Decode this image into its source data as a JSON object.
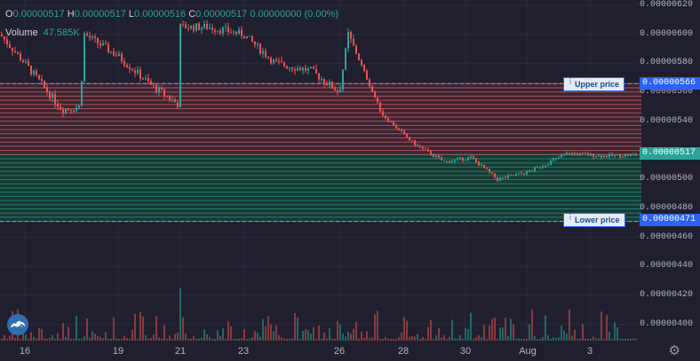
{
  "legend": {
    "o_label": "O",
    "o_value": "0.00000517",
    "h_label": "H",
    "h_value": "0.00000517",
    "l_label": "L",
    "l_value": "0.00000516",
    "c_label": "C",
    "c_value": "0.00000517",
    "change": "0.00000000 (0.00%)",
    "volume_label": "Volume",
    "volume_value": "47.585K"
  },
  "price_axis": {
    "labels": [
      "0.00000620",
      "0.00000600",
      "0.00000580",
      "0.00000560",
      "0.00000540",
      "0.00000500",
      "0.00000480",
      "0.00000460",
      "0.00000440",
      "0.00000420",
      "0.00000400"
    ]
  },
  "time_axis": {
    "labels": [
      "16",
      "19",
      "21",
      "23",
      "26",
      "28",
      "30",
      "Aug",
      "3"
    ]
  },
  "levels": {
    "upper_label": "Upper price",
    "upper_value": "0.00000566",
    "lower_label": "Lower price",
    "lower_value": "0.00000471",
    "current_value": "0.00000517"
  },
  "colors": {
    "up": "#26a69a",
    "down": "#ef5350",
    "background": "#1f1f30",
    "level": "#2962ff"
  },
  "icons": {
    "logo": "tradingview-logo-icon",
    "settings": "gear-icon"
  },
  "chart_data": {
    "type": "candlestick",
    "price_range": [
      3.9e-06,
      6.2e-06
    ],
    "upper_price": 5.66e-06,
    "lower_price": 4.71e-06,
    "last_price": 5.17e-06,
    "close_path": [
      [
        "15",
        6e-06
      ],
      [
        "16",
        5.8e-06
      ],
      [
        "17",
        5.48e-06
      ],
      [
        "18",
        5.5e-06
      ],
      [
        "18",
        6e-06
      ],
      [
        "19",
        5.85e-06
      ],
      [
        "20",
        5.65e-06
      ],
      [
        "21",
        5.52e-06
      ],
      [
        "21",
        6.05e-06
      ],
      [
        "22",
        6.05e-06
      ],
      [
        "23",
        6e-06
      ],
      [
        "24",
        5.8e-06
      ],
      [
        "25",
        5.75e-06
      ],
      [
        "26",
        5.6e-06
      ],
      [
        "26",
        6e-06
      ],
      [
        "27",
        5.45e-06
      ],
      [
        "28",
        5.25e-06
      ],
      [
        "29",
        5.12e-06
      ],
      [
        "30",
        5.15e-06
      ],
      [
        "31",
        5e-06
      ],
      [
        "Aug",
        5.05e-06
      ],
      [
        "2",
        5.18e-06
      ],
      [
        "3",
        5.16e-06
      ],
      [
        "4",
        5.17e-06
      ]
    ]
  }
}
